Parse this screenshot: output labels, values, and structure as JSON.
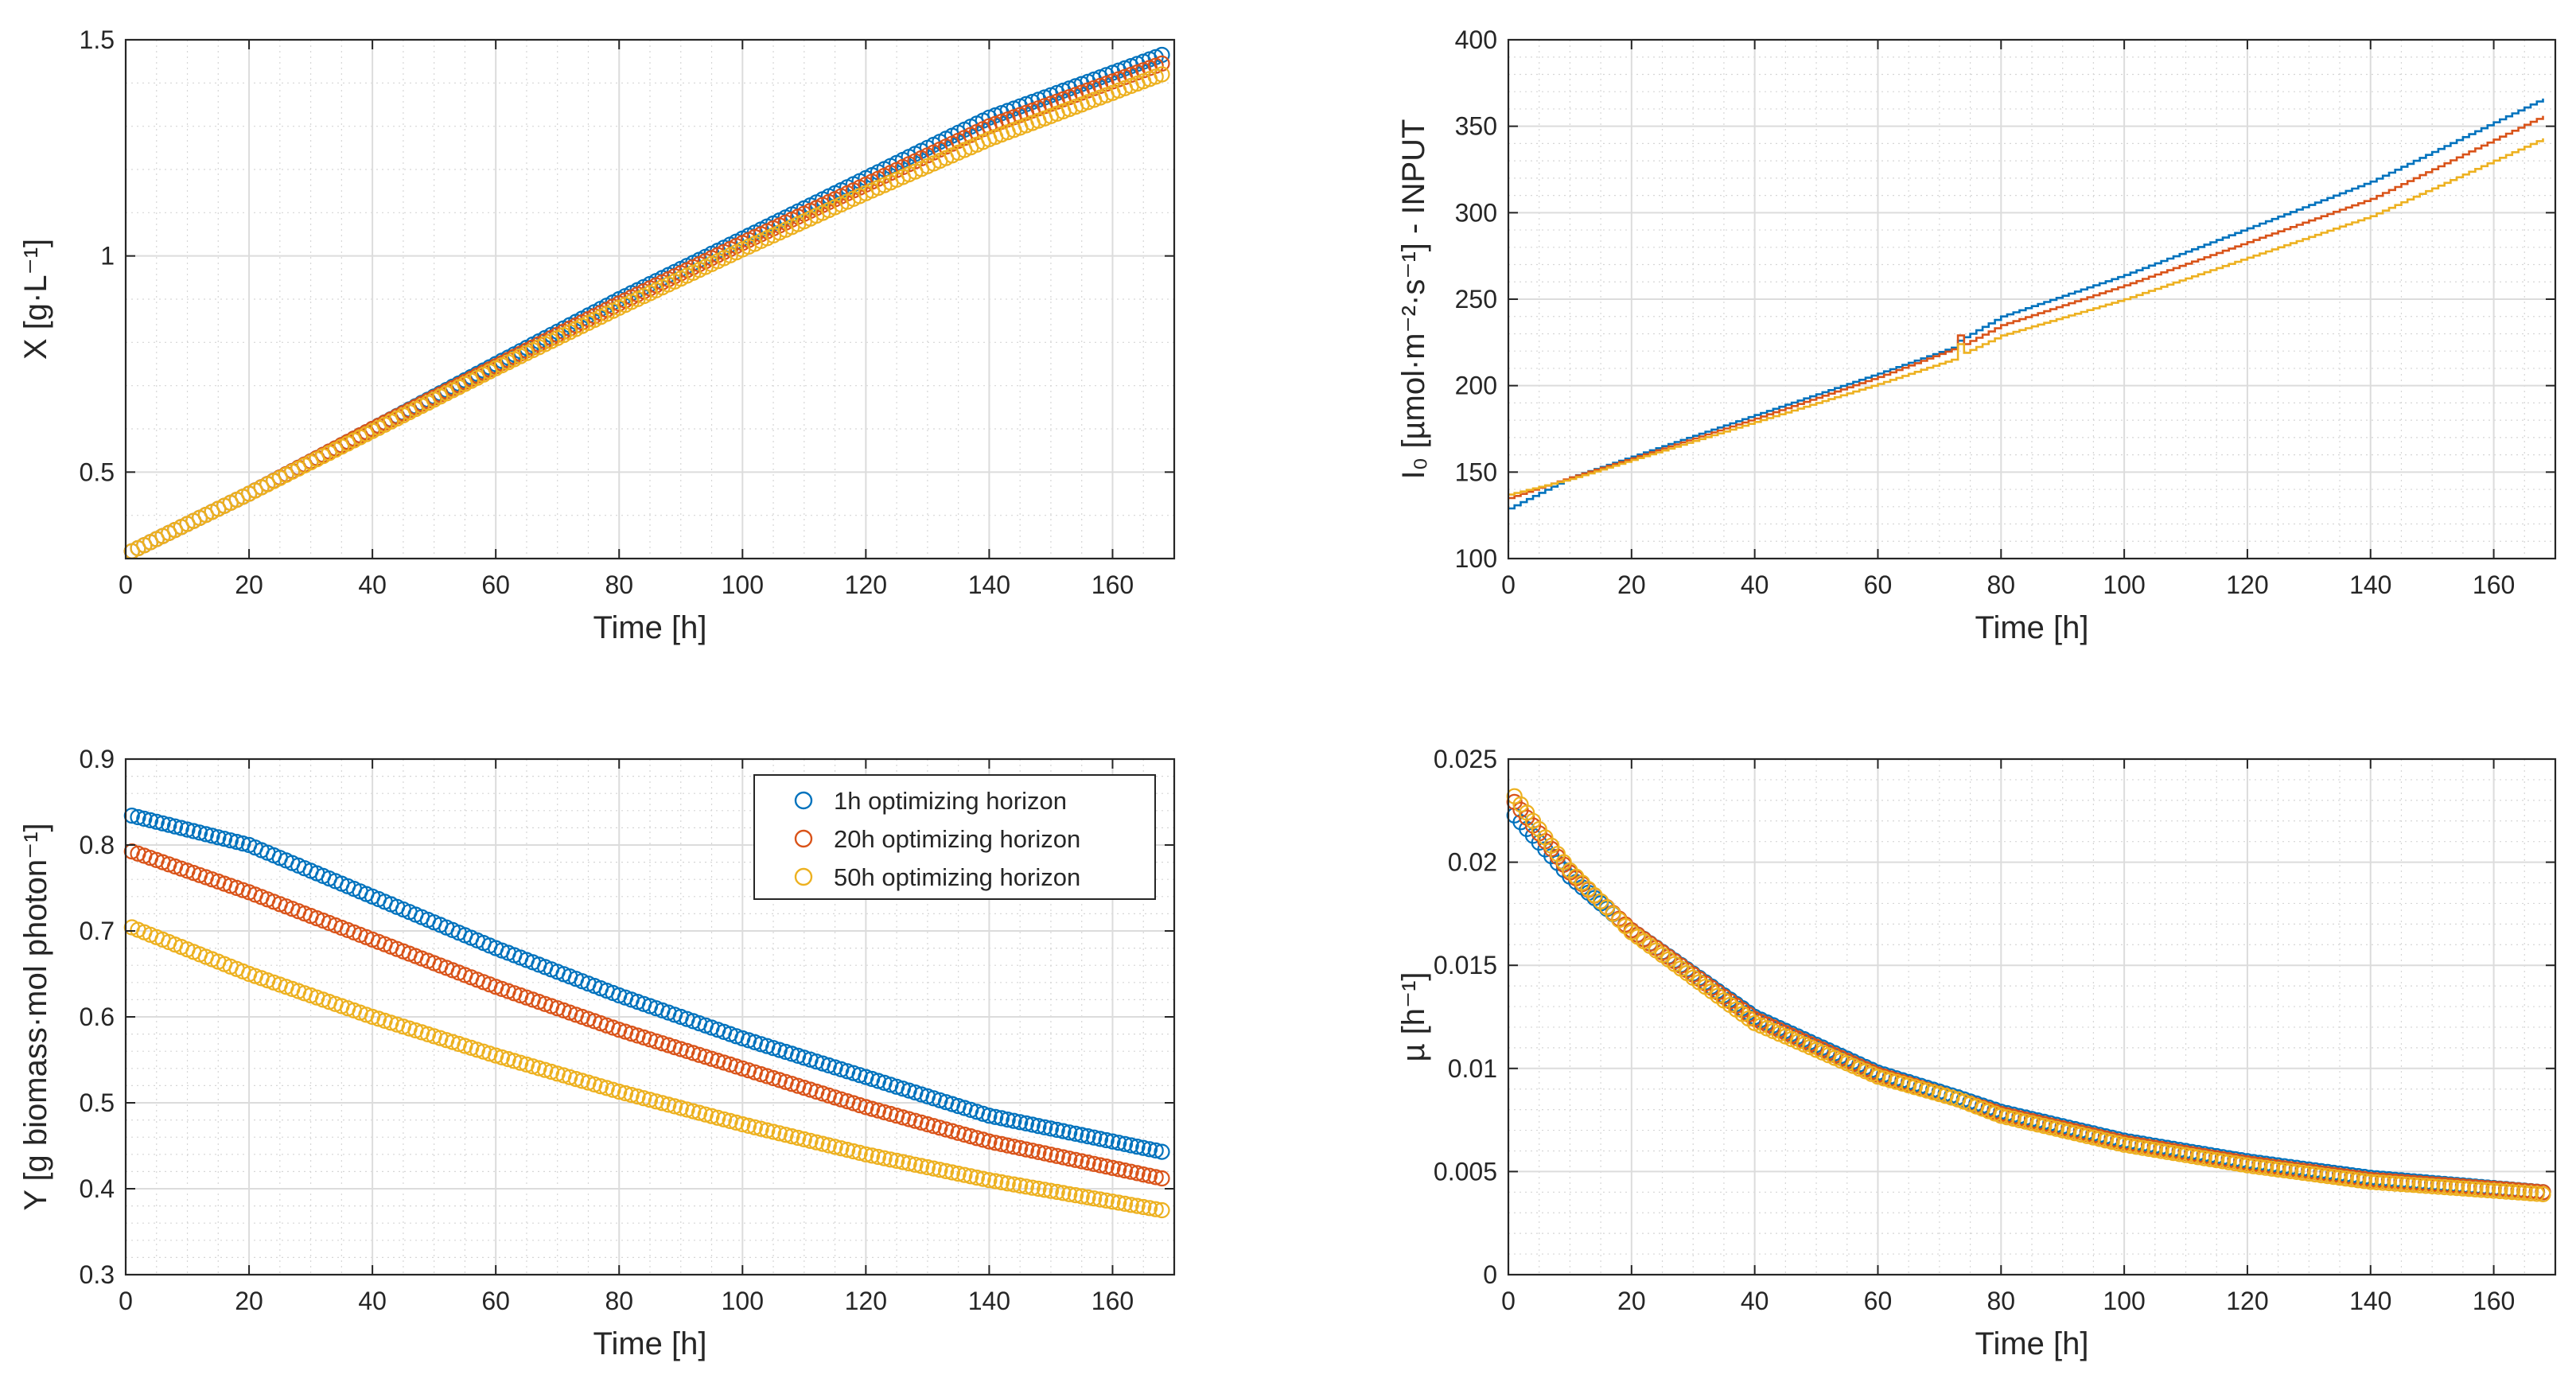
{
  "colors": {
    "series1": "#0072BD",
    "series2": "#D95319",
    "series3": "#EDB120"
  },
  "chart_data": [
    {
      "id": "biomass",
      "type": "scatter",
      "marker": "open-circle",
      "xlabel": "Time [h]",
      "ylabel": "X [g·L⁻¹]",
      "xlim": [
        0,
        170
      ],
      "ylim": [
        0.3,
        1.5
      ],
      "xticks": [
        0,
        20,
        40,
        60,
        80,
        100,
        120,
        140,
        160
      ],
      "yticks": [
        0.5,
        1,
        1.5
      ],
      "ytick_labels": [
        "0.5",
        "1",
        "1.5"
      ],
      "grid": true,
      "minor_grid": true,
      "series": [
        {
          "color": "#0072BD",
          "points": [
            [
              0,
              0.31
            ],
            [
              20,
              0.45
            ],
            [
              40,
              0.6
            ],
            [
              60,
              0.75
            ],
            [
              80,
              0.9
            ],
            [
              100,
              1.04
            ],
            [
              120,
              1.18
            ],
            [
              140,
              1.32
            ],
            [
              168,
              1.465
            ]
          ]
        },
        {
          "color": "#D95319",
          "points": [
            [
              0,
              0.31
            ],
            [
              20,
              0.45
            ],
            [
              40,
              0.6
            ],
            [
              60,
              0.745
            ],
            [
              80,
              0.89
            ],
            [
              100,
              1.03
            ],
            [
              120,
              1.165
            ],
            [
              140,
              1.3
            ],
            [
              168,
              1.445
            ]
          ]
        },
        {
          "color": "#EDB120",
          "points": [
            [
              0,
              0.31
            ],
            [
              20,
              0.45
            ],
            [
              40,
              0.595
            ],
            [
              60,
              0.74
            ],
            [
              80,
              0.88
            ],
            [
              100,
              1.015
            ],
            [
              120,
              1.145
            ],
            [
              140,
              1.27
            ],
            [
              168,
              1.42
            ]
          ]
        }
      ]
    },
    {
      "id": "light",
      "type": "line",
      "step": true,
      "xlabel": "Time [h]",
      "ylabel": "I₀ [µmol·m⁻²·s⁻¹] - INPUT",
      "xlim": [
        0,
        170
      ],
      "ylim": [
        100,
        400
      ],
      "xticks": [
        0,
        20,
        40,
        60,
        80,
        100,
        120,
        140,
        160
      ],
      "yticks": [
        100,
        150,
        200,
        250,
        300,
        350,
        400
      ],
      "ytick_labels": [
        "100",
        "150",
        "200",
        "250",
        "300",
        "350",
        "400"
      ],
      "grid": true,
      "minor_grid": true,
      "series": [
        {
          "color": "#0072BD",
          "points": [
            [
              0,
              129
            ],
            [
              10,
              147
            ],
            [
              20,
              159
            ],
            [
              40,
              183
            ],
            [
              60,
              207
            ],
            [
              72,
              222
            ],
            [
              73,
              226
            ],
            [
              80,
              240
            ],
            [
              100,
              264
            ],
            [
              120,
              291
            ],
            [
              140,
              318
            ],
            [
              168,
              366
            ]
          ]
        },
        {
          "color": "#D95319",
          "points": [
            [
              0,
              135
            ],
            [
              10,
              147
            ],
            [
              20,
              158
            ],
            [
              40,
              181
            ],
            [
              60,
              205
            ],
            [
              72,
              221
            ],
            [
              73,
              229
            ],
            [
              74,
              224
            ],
            [
              80,
              235
            ],
            [
              100,
              258
            ],
            [
              120,
              283
            ],
            [
              140,
              308
            ],
            [
              168,
              356
            ]
          ]
        },
        {
          "color": "#EDB120",
          "points": [
            [
              0,
              137
            ],
            [
              10,
              146
            ],
            [
              20,
              157
            ],
            [
              40,
              179
            ],
            [
              60,
              201
            ],
            [
              72,
              215
            ],
            [
              73,
              224
            ],
            [
              74,
              219
            ],
            [
              80,
              229
            ],
            [
              100,
              250
            ],
            [
              120,
              274
            ],
            [
              140,
              298
            ],
            [
              168,
              343
            ]
          ]
        }
      ]
    },
    {
      "id": "yield",
      "type": "scatter",
      "marker": "open-circle",
      "xlabel": "Time [h]",
      "ylabel": "Y [g biomass·mol photon⁻¹]",
      "xlim": [
        0,
        170
      ],
      "ylim": [
        0.3,
        0.9
      ],
      "xticks": [
        0,
        20,
        40,
        60,
        80,
        100,
        120,
        140,
        160
      ],
      "yticks": [
        0.3,
        0.4,
        0.5,
        0.6,
        0.7,
        0.8,
        0.9
      ],
      "ytick_labels": [
        "0.3",
        "0.4",
        "0.5",
        "0.6",
        "0.7",
        "0.8",
        "0.9"
      ],
      "grid": true,
      "minor_grid": true,
      "legend": {
        "position": "top-right",
        "entries": [
          "1h optimizing horizon",
          "20h optimizing horizon",
          "50h optimizing horizon"
        ]
      },
      "series": [
        {
          "name": "1h optimizing horizon",
          "color": "#0072BD",
          "points": [
            [
              0,
              0.836
            ],
            [
              20,
              0.8
            ],
            [
              40,
              0.74
            ],
            [
              60,
              0.68
            ],
            [
              80,
              0.625
            ],
            [
              100,
              0.575
            ],
            [
              120,
              0.53
            ],
            [
              140,
              0.485
            ],
            [
              168,
              0.443
            ]
          ]
        },
        {
          "name": "20h optimizing horizon",
          "color": "#D95319",
          "points": [
            [
              0,
              0.795
            ],
            [
              20,
              0.745
            ],
            [
              40,
              0.69
            ],
            [
              60,
              0.635
            ],
            [
              80,
              0.585
            ],
            [
              100,
              0.54
            ],
            [
              120,
              0.495
            ],
            [
              140,
              0.455
            ],
            [
              168,
              0.412
            ]
          ]
        },
        {
          "name": "50h optimizing horizon",
          "color": "#EDB120",
          "points": [
            [
              0,
              0.707
            ],
            [
              20,
              0.65
            ],
            [
              40,
              0.6
            ],
            [
              60,
              0.555
            ],
            [
              80,
              0.513
            ],
            [
              100,
              0.475
            ],
            [
              120,
              0.44
            ],
            [
              140,
              0.41
            ],
            [
              168,
              0.375
            ]
          ]
        }
      ]
    },
    {
      "id": "growth",
      "type": "scatter",
      "marker": "open-circle",
      "xlabel": "Time [h]",
      "ylabel": "µ [h⁻¹]",
      "xlim": [
        0,
        170
      ],
      "ylim": [
        0,
        0.025
      ],
      "xticks": [
        0,
        20,
        40,
        60,
        80,
        100,
        120,
        140,
        160
      ],
      "yticks": [
        0,
        0.005,
        0.01,
        0.015,
        0.02,
        0.025
      ],
      "ytick_labels": [
        "0",
        "0.005",
        "0.01",
        "0.015",
        "0.02",
        "0.025"
      ],
      "grid": true,
      "minor_grid": true,
      "series": [
        {
          "color": "#0072BD",
          "points": [
            [
              0,
              0.0226
            ],
            [
              10,
              0.0193
            ],
            [
              20,
              0.0167
            ],
            [
              40,
              0.0125
            ],
            [
              60,
              0.0098
            ],
            [
              73,
              0.0086
            ],
            [
              80,
              0.0079
            ],
            [
              100,
              0.0065
            ],
            [
              120,
              0.0055
            ],
            [
              140,
              0.0047
            ],
            [
              168,
              0.004
            ]
          ]
        },
        {
          "color": "#D95319",
          "points": [
            [
              0,
              0.0233
            ],
            [
              10,
              0.0195
            ],
            [
              20,
              0.0167
            ],
            [
              40,
              0.0124
            ],
            [
              60,
              0.0097
            ],
            [
              73,
              0.0085
            ],
            [
              80,
              0.0078
            ],
            [
              100,
              0.0064
            ],
            [
              120,
              0.0054
            ],
            [
              140,
              0.0046
            ],
            [
              168,
              0.004
            ]
          ]
        },
        {
          "color": "#EDB120",
          "points": [
            [
              0,
              0.0236
            ],
            [
              10,
              0.0196
            ],
            [
              20,
              0.0166
            ],
            [
              40,
              0.0122
            ],
            [
              60,
              0.0096
            ],
            [
              73,
              0.0085
            ],
            [
              80,
              0.0077
            ],
            [
              100,
              0.0063
            ],
            [
              120,
              0.0053
            ],
            [
              140,
              0.0045
            ],
            [
              168,
              0.0039
            ]
          ]
        }
      ]
    }
  ]
}
